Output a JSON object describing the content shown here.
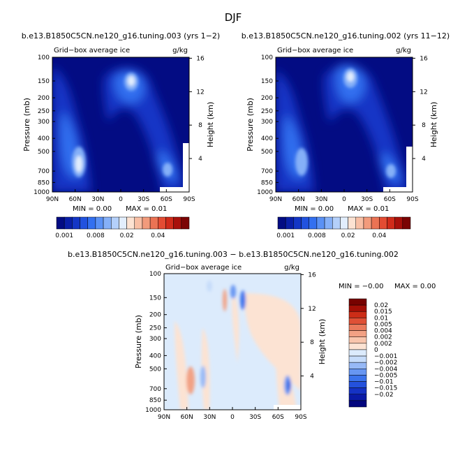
{
  "page": {
    "super_title": "DJF",
    "diff_title": "b.e13.B1850C5CN.ne120_g16.tuning.003 − b.e13.B1850C5CN.ne120_g16.tuning.002"
  },
  "colors": {
    "ice_scale": [
      "#030C83",
      "#0A1FA8",
      "#1436C6",
      "#2152DF",
      "#3370F0",
      "#5A91F5",
      "#85B0F8",
      "#B4D0FA",
      "#E2EEFD",
      "#FCE2D2",
      "#F8BFA5",
      "#F29B7C",
      "#EB7354",
      "#E34C33",
      "#D02B1A",
      "#A8100B",
      "#7B0404"
    ],
    "diff_scale": [
      "#03077E",
      "#0A1AA6",
      "#1532C4",
      "#2451DC",
      "#3B73EC",
      "#6796F2",
      "#97B9F6",
      "#C6DCFA",
      "#DCEBFC",
      "#FCE3D3",
      "#F8C5AC",
      "#F2A184",
      "#EA7A5C",
      "#DF5036",
      "#CC2D17",
      "#A40F06",
      "#770200"
    ]
  },
  "chart_data": [
    {
      "type": "heatmap",
      "panel_title": "b.e13.B1850C5CN.ne120_g16.tuning.003 (yrs 1−2)",
      "left_label": "Grid−box average ice",
      "right_label": "g/kg",
      "xlabel": "",
      "ylabel": "Pressure (mb)",
      "ylabel_right": "Height (km)",
      "x_ticks": [
        "90N",
        "60N",
        "30N",
        "0",
        "30S",
        "60S",
        "90S"
      ],
      "y_ticks": [
        "100",
        "150",
        "200",
        "250",
        "300",
        "400",
        "500",
        "700",
        "850",
        "1000"
      ],
      "height_ticks": [
        "16",
        "12",
        "8",
        "4"
      ],
      "min_text": "MIN =    0.00",
      "max_text": "MAX =    0.01",
      "colorbar_labels": [
        "0.001",
        "0.008",
        "0.02",
        "0.04"
      ],
      "xlim": [
        90,
        -90
      ],
      "ylim_mb": [
        1000,
        100
      ]
    },
    {
      "type": "heatmap",
      "panel_title": "b.e13.B1850C5CN.ne120_g16.tuning.002 (yrs 11−12)",
      "left_label": "Grid−box average ice",
      "right_label": "g/kg",
      "xlabel": "",
      "ylabel": "Pressure (mb)",
      "ylabel_right": "Height (km)",
      "x_ticks": [
        "90N",
        "60N",
        "30N",
        "0",
        "30S",
        "60S",
        "90S"
      ],
      "y_ticks": [
        "100",
        "150",
        "200",
        "250",
        "300",
        "400",
        "500",
        "700",
        "850",
        "1000"
      ],
      "height_ticks": [
        "16",
        "12",
        "8",
        "4"
      ],
      "min_text": "MIN =    0.00",
      "max_text": "MAX =    0.01",
      "colorbar_labels": [
        "0.001",
        "0.008",
        "0.02",
        "0.04"
      ],
      "xlim": [
        90,
        -90
      ],
      "ylim_mb": [
        1000,
        100
      ]
    },
    {
      "type": "heatmap",
      "panel_title": "",
      "left_label": "Grid−box average ice",
      "right_label": "g/kg",
      "xlabel": "",
      "ylabel": "Pressure (mb)",
      "ylabel_right": "Height (km)",
      "x_ticks": [
        "90N",
        "60N",
        "30N",
        "0",
        "30S",
        "60S",
        "90S"
      ],
      "y_ticks": [
        "100",
        "150",
        "200",
        "250",
        "300",
        "400",
        "500",
        "700",
        "850",
        "1000"
      ],
      "height_ticks": [
        "16",
        "12",
        "8",
        "4"
      ],
      "min_text": "MIN =   −0.00",
      "max_text": "MAX =    0.00",
      "colorbar_labels": [
        "0.02",
        "0.015",
        "0.01",
        "0.005",
        "0.004",
        "0.002",
        "0.002",
        "0",
        "−0.001",
        "−0.002",
        "−0.004",
        "−0.005",
        "−0.01",
        "−0.015",
        "−0.02"
      ],
      "xlim": [
        90,
        -90
      ],
      "ylim_mb": [
        1000,
        100
      ]
    }
  ]
}
